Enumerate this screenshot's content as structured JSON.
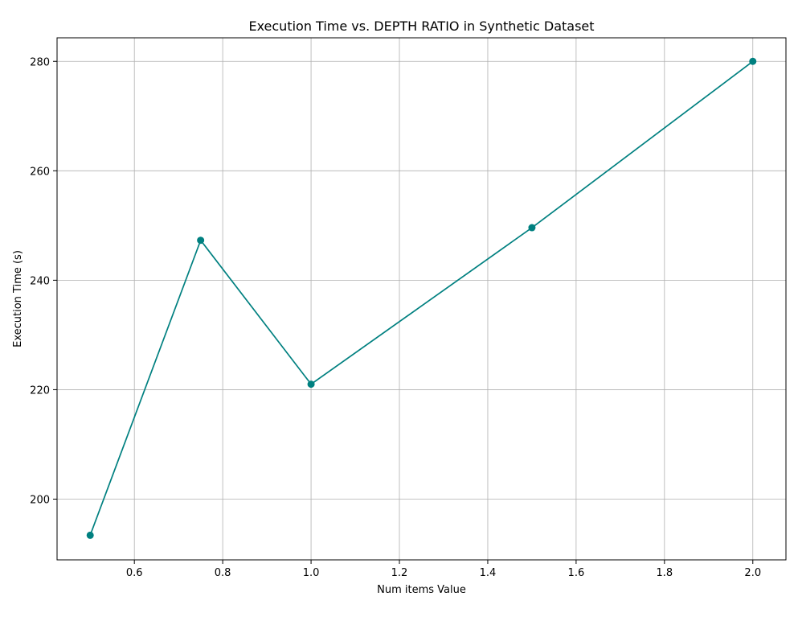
{
  "chart_data": {
    "type": "line",
    "title": "Execution Time vs. DEPTH RATIO in Synthetic Dataset",
    "xlabel": "Num items Value",
    "ylabel": "Execution Time (s)",
    "x": [
      0.5,
      0.75,
      1.0,
      1.5,
      2.0
    ],
    "series": [
      {
        "values": [
          193.4,
          247.3,
          221.0,
          249.6,
          280.0
        ]
      }
    ],
    "xlim": [
      0.425,
      2.075
    ],
    "ylim": [
      188.9,
      284.3
    ],
    "xticks": [
      0.6,
      0.8,
      1.0,
      1.2,
      1.4,
      1.6,
      1.8,
      2.0
    ],
    "xtick_labels": [
      "0.6",
      "0.8",
      "1.0",
      "1.2",
      "1.4",
      "1.6",
      "1.8",
      "2.0"
    ],
    "yticks": [
      200,
      220,
      240,
      260,
      280
    ],
    "ytick_labels": [
      "200",
      "220",
      "240",
      "260",
      "280"
    ],
    "grid": true,
    "line_color": "#008080",
    "marker": "circle"
  }
}
